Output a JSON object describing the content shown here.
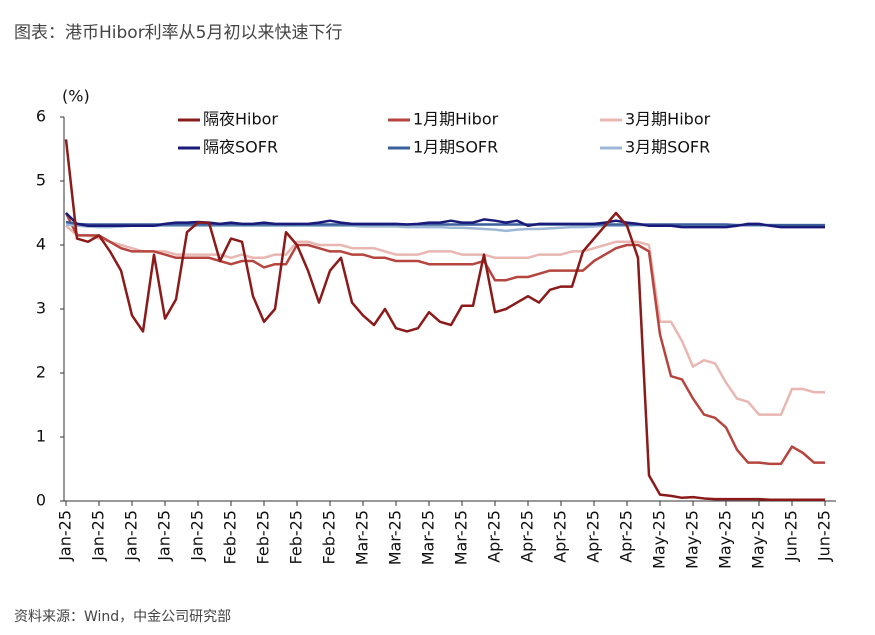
{
  "title": "图表：港币Hibor利率从5月初以来快速下行",
  "source": "资料来源：Wind，中金公司研究部",
  "chart_data": {
    "type": "line",
    "y_label": "(%)",
    "ylim": [
      0,
      6
    ],
    "yticks": [
      0,
      1,
      2,
      3,
      4,
      5,
      6
    ],
    "grid": false,
    "legend": "top",
    "categories": [
      "Jan-25",
      null,
      null,
      "Jan-25",
      null,
      null,
      "Jan-25",
      null,
      null,
      "Jan-25",
      null,
      null,
      "Jan-25",
      null,
      null,
      "Feb-25",
      null,
      null,
      "Feb-25",
      null,
      null,
      "Feb-25",
      null,
      null,
      "Feb-25",
      null,
      null,
      "Mar-25",
      null,
      null,
      "Mar-25",
      null,
      null,
      "Mar-25",
      null,
      null,
      "Mar-25",
      null,
      null,
      "Apr-25",
      null,
      null,
      "Apr-25",
      null,
      null,
      "Apr-25",
      null,
      null,
      "Apr-25",
      null,
      null,
      "Apr-25",
      null,
      null,
      "May-25",
      null,
      null,
      "May-25",
      null,
      null,
      "May-25",
      null,
      null,
      "May-25",
      null,
      null,
      "Jun-25",
      null,
      null,
      "Jun-25"
    ],
    "series": [
      {
        "name": "隔夜Hibor",
        "color": "#8b1a1a",
        "values": [
          5.65,
          4.1,
          4.05,
          4.15,
          3.9,
          3.6,
          2.9,
          2.65,
          3.85,
          2.85,
          3.15,
          4.2,
          4.35,
          4.35,
          3.75,
          4.1,
          4.05,
          3.2,
          2.8,
          3.0,
          4.2,
          4.0,
          3.6,
          3.1,
          3.6,
          3.8,
          3.1,
          2.9,
          2.75,
          3.0,
          2.7,
          2.65,
          2.7,
          2.95,
          2.8,
          2.75,
          3.05,
          3.05,
          3.85,
          2.95,
          3.0,
          3.1,
          3.2,
          3.1,
          3.3,
          3.35,
          3.35,
          3.9,
          4.1,
          4.3,
          4.5,
          4.3,
          3.8,
          0.4,
          0.1,
          0.08,
          0.05,
          0.06,
          0.04,
          0.03,
          0.03,
          0.03,
          0.03,
          0.03,
          0.02,
          0.02,
          0.02,
          0.02,
          0.02,
          0.02
        ]
      },
      {
        "name": "1月期Hibor",
        "color": "#b5453e",
        "values": [
          4.5,
          4.15,
          4.15,
          4.15,
          4.05,
          3.95,
          3.9,
          3.9,
          3.9,
          3.85,
          3.8,
          3.8,
          3.8,
          3.8,
          3.75,
          3.7,
          3.75,
          3.75,
          3.65,
          3.7,
          3.7,
          4.0,
          4.0,
          3.95,
          3.9,
          3.9,
          3.85,
          3.85,
          3.8,
          3.8,
          3.75,
          3.75,
          3.75,
          3.7,
          3.7,
          3.7,
          3.7,
          3.7,
          3.75,
          3.45,
          3.45,
          3.5,
          3.5,
          3.55,
          3.6,
          3.6,
          3.6,
          3.6,
          3.75,
          3.85,
          3.95,
          4.0,
          4.0,
          3.9,
          2.6,
          1.95,
          1.9,
          1.6,
          1.35,
          1.3,
          1.15,
          0.8,
          0.6,
          0.6,
          0.58,
          0.58,
          0.85,
          0.75,
          0.6,
          0.6
        ]
      },
      {
        "name": "3月期Hibor",
        "color": "#e8b7b2",
        "values": [
          4.3,
          4.15,
          4.15,
          4.1,
          4.05,
          4.0,
          3.95,
          3.9,
          3.9,
          3.9,
          3.85,
          3.85,
          3.85,
          3.85,
          3.85,
          3.8,
          3.85,
          3.8,
          3.8,
          3.85,
          3.85,
          4.05,
          4.05,
          4.0,
          4.0,
          4.0,
          3.95,
          3.95,
          3.95,
          3.9,
          3.85,
          3.85,
          3.85,
          3.9,
          3.9,
          3.9,
          3.85,
          3.85,
          3.85,
          3.8,
          3.8,
          3.8,
          3.8,
          3.85,
          3.85,
          3.85,
          3.9,
          3.9,
          3.95,
          4.0,
          4.05,
          4.05,
          4.05,
          4.0,
          2.8,
          2.8,
          2.5,
          2.1,
          2.2,
          2.15,
          1.85,
          1.6,
          1.55,
          1.35,
          1.35,
          1.35,
          1.75,
          1.75,
          1.7,
          1.7
        ]
      },
      {
        "name": "隔夜SOFR",
        "color": "#1a1a7a",
        "values": [
          4.5,
          4.33,
          4.3,
          4.3,
          4.3,
          4.3,
          4.3,
          4.3,
          4.3,
          4.33,
          4.35,
          4.35,
          4.36,
          4.35,
          4.33,
          4.35,
          4.33,
          4.33,
          4.35,
          4.33,
          4.33,
          4.33,
          4.33,
          4.35,
          4.38,
          4.35,
          4.33,
          4.33,
          4.33,
          4.33,
          4.33,
          4.32,
          4.33,
          4.35,
          4.35,
          4.38,
          4.35,
          4.35,
          4.4,
          4.38,
          4.35,
          4.38,
          4.3,
          4.33,
          4.33,
          4.33,
          4.33,
          4.33,
          4.33,
          4.35,
          4.38,
          4.35,
          4.33,
          4.3,
          4.3,
          4.3,
          4.28,
          4.28,
          4.28,
          4.28,
          4.28,
          4.3,
          4.33,
          4.33,
          4.3,
          4.28,
          4.28,
          4.28,
          4.28,
          4.28
        ]
      },
      {
        "name": "1月期SOFR",
        "color": "#3b5f9a",
        "values": [
          4.36,
          4.33,
          4.32,
          4.32,
          4.32,
          4.32,
          4.32,
          4.32,
          4.32,
          4.32,
          4.32,
          4.32,
          4.32,
          4.32,
          4.32,
          4.32,
          4.32,
          4.32,
          4.32,
          4.32,
          4.32,
          4.32,
          4.32,
          4.32,
          4.32,
          4.32,
          4.32,
          4.32,
          4.32,
          4.32,
          4.32,
          4.32,
          4.32,
          4.32,
          4.32,
          4.32,
          4.32,
          4.32,
          4.32,
          4.32,
          4.32,
          4.32,
          4.32,
          4.32,
          4.32,
          4.32,
          4.32,
          4.32,
          4.32,
          4.32,
          4.32,
          4.32,
          4.32,
          4.32,
          4.32,
          4.32,
          4.32,
          4.32,
          4.32,
          4.32,
          4.32,
          4.31,
          4.31,
          4.31,
          4.31,
          4.31,
          4.31,
          4.31,
          4.31,
          4.31
        ]
      },
      {
        "name": "3月期SOFR",
        "color": "#9db8d6",
        "values": [
          4.32,
          4.3,
          4.29,
          4.28,
          4.28,
          4.29,
          4.3,
          4.3,
          4.3,
          4.3,
          4.3,
          4.3,
          4.3,
          4.3,
          4.3,
          4.3,
          4.3,
          4.3,
          4.3,
          4.3,
          4.3,
          4.3,
          4.3,
          4.3,
          4.3,
          4.3,
          4.3,
          4.29,
          4.29,
          4.29,
          4.29,
          4.28,
          4.28,
          4.28,
          4.28,
          4.27,
          4.27,
          4.26,
          4.25,
          4.24,
          4.22,
          4.24,
          4.25,
          4.25,
          4.26,
          4.27,
          4.28,
          4.28,
          4.29,
          4.3,
          4.3,
          4.3,
          4.31,
          4.31,
          4.31,
          4.31,
          4.31,
          4.31,
          4.31,
          4.31,
          4.31,
          4.31,
          4.31,
          4.31,
          4.31,
          4.31,
          4.31,
          4.31,
          4.31,
          4.31
        ]
      }
    ]
  }
}
